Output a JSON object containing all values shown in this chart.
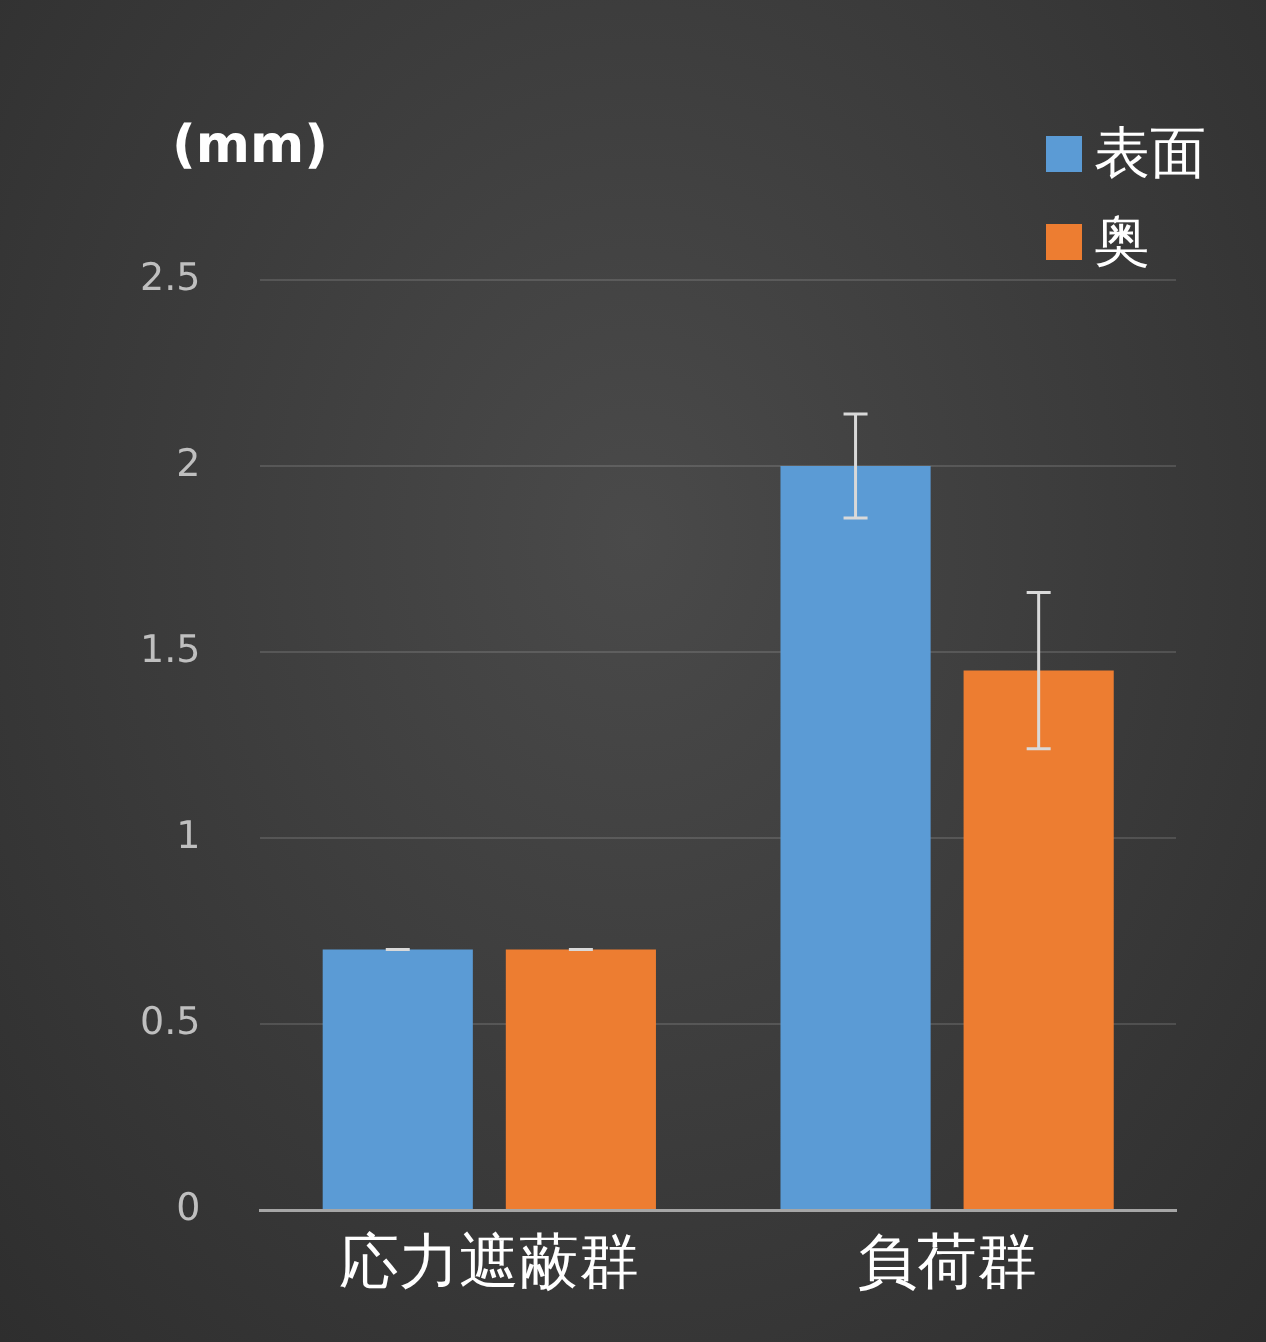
{
  "chart_data": {
    "type": "bar",
    "ylabel": "(mm)",
    "categories": [
      "応力遮蔽群",
      "負荷群"
    ],
    "series": [
      {
        "name": "表面",
        "color": "#5b9bd5",
        "values": [
          0.7,
          2.0
        ],
        "errors": [
          0,
          [
            1.86,
            2.14
          ]
        ]
      },
      {
        "name": "奥",
        "color": "#ed7d31",
        "values": [
          0.7,
          1.45
        ],
        "errors": [
          0,
          [
            1.24,
            1.66
          ]
        ]
      }
    ],
    "ylim": [
      0,
      2.5
    ],
    "yticks": [
      0,
      0.5,
      1,
      1.5,
      2,
      2.5
    ],
    "grid": "y",
    "legend": "top right"
  }
}
